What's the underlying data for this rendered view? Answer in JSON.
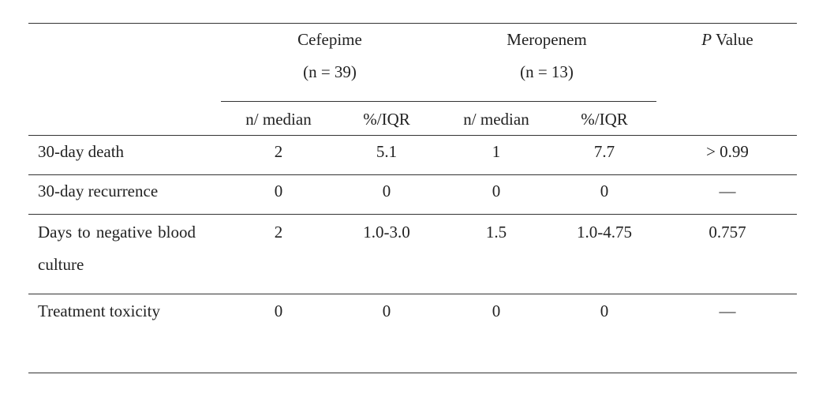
{
  "table": {
    "groups": [
      {
        "name": "Cefepime",
        "n": "(n = 39)"
      },
      {
        "name": "Meropenem",
        "n": "(n = 13)"
      }
    ],
    "p_header": {
      "symbol": "P",
      "label": "Value"
    },
    "subheaders": [
      "n/ median",
      "%/IQR",
      "n/ median",
      "%/IQR"
    ],
    "rows": [
      {
        "label": "30-day death",
        "cells": [
          "2",
          "5.1",
          "1",
          "7.7"
        ],
        "p": "> 0.99"
      },
      {
        "label": "30-day recurrence",
        "cells": [
          "0",
          "0",
          "0",
          "0"
        ],
        "p": "—"
      },
      {
        "label": "Days to negative blood culture",
        "cells": [
          "2",
          "1.0-3.0",
          "1.5",
          "1.0-4.75"
        ],
        "p": "0.757"
      },
      {
        "label": "Treatment toxicity",
        "cells": [
          "0",
          "0",
          "0",
          "0"
        ],
        "p": "—"
      }
    ]
  }
}
